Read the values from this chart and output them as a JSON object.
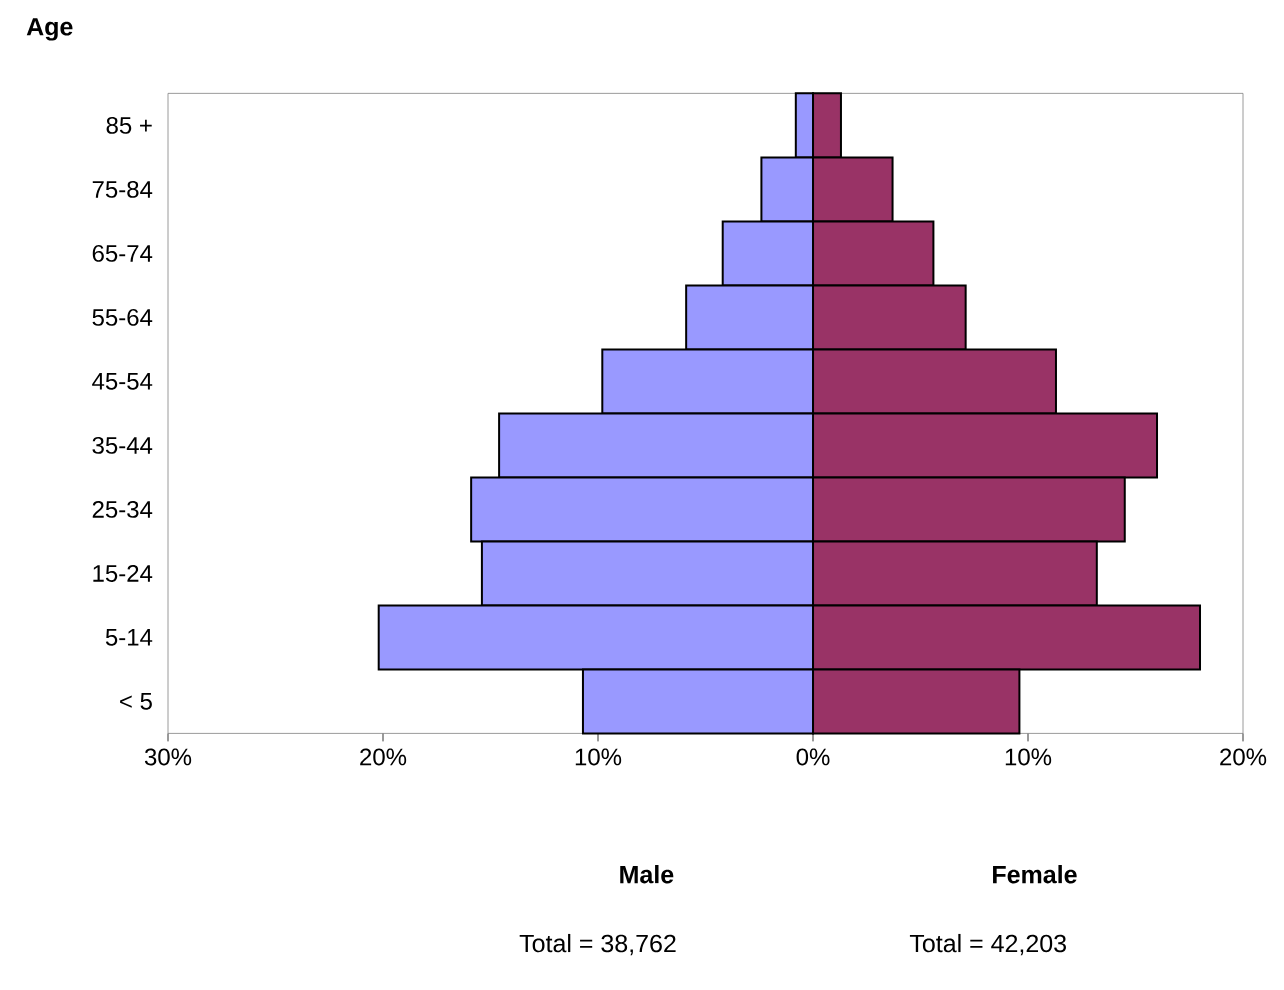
{
  "chart_data": {
    "type": "bar",
    "orientation": "horizontal",
    "ylabel": "Age",
    "categories": [
      "85 +",
      "75-84",
      "65-74",
      "55-64",
      "45-54",
      "35-44",
      "25-34",
      "15-24",
      "5-14",
      "< 5"
    ],
    "series": [
      {
        "color": "#9999ff",
        "values": [
          -0.8,
          -2.4,
          -4.2,
          -5.9,
          -9.8,
          -14.6,
          -15.9,
          -15.4,
          -20.2,
          -10.7
        ]
      },
      {
        "color": "#993366",
        "values": [
          1.3,
          3.7,
          5.6,
          7.1,
          11.3,
          16.0,
          14.5,
          13.2,
          18.0,
          9.6
        ]
      }
    ],
    "xlim": [
      -30,
      20
    ],
    "xticks": [
      {
        "value": -30,
        "label": "30%"
      },
      {
        "value": -20,
        "label": "20%"
      },
      {
        "value": -10,
        "label": "10%"
      },
      {
        "value": 0,
        "label": "0%"
      },
      {
        "value": 10,
        "label": "10%"
      },
      {
        "value": 20,
        "label": "20%"
      }
    ],
    "grid": false,
    "stacked": true,
    "annotations": [
      "Male",
      "Female",
      "Total = 38,762",
      "Total = 42,203"
    ]
  }
}
